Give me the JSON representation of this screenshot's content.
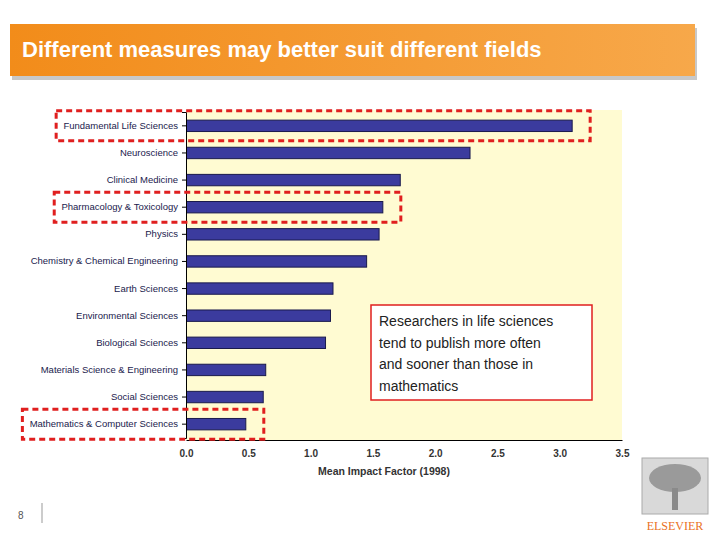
{
  "chart_data": {
    "type": "bar",
    "title": "Different measures may better suit different fields",
    "orientation": "horizontal",
    "categories": [
      "Fundamental Life Sciences",
      "Neuroscience",
      "Clinical Medicine",
      "Pharmacology & Toxicology",
      "Physics",
      "Chemistry & Chemical Engineering",
      "Earth Sciences",
      "Environmental Sciences",
      "Biological Sciences",
      "Materials Science & Engineering",
      "Social Sciences",
      "Mathematics & Computer Sciences"
    ],
    "values": [
      3.1,
      2.28,
      1.72,
      1.58,
      1.55,
      1.45,
      1.18,
      1.16,
      1.12,
      0.64,
      0.62,
      0.48
    ],
    "color": "#3b3b9e",
    "xlabel": "Mean Impact Factor (1998)",
    "xlim": [
      0,
      3.5
    ],
    "xticks": [
      {
        "value": 0,
        "label": "0.0"
      },
      0.5,
      {
        "value": 1,
        "label": "1.0"
      },
      1.5,
      {
        "value": 2,
        "label": "2.0"
      },
      2.5,
      {
        "value": 3,
        "label": "3.0"
      },
      3.5
    ],
    "grid": false,
    "data_labels": false,
    "annotations": [
      {
        "lines": [
          "Researchers in life sciences",
          "tend to publish more often",
          "and sooner than those in",
          "mathematics"
        ]
      }
    ]
  },
  "page": {
    "number": 8,
    "logo": "ELSEVIER"
  }
}
